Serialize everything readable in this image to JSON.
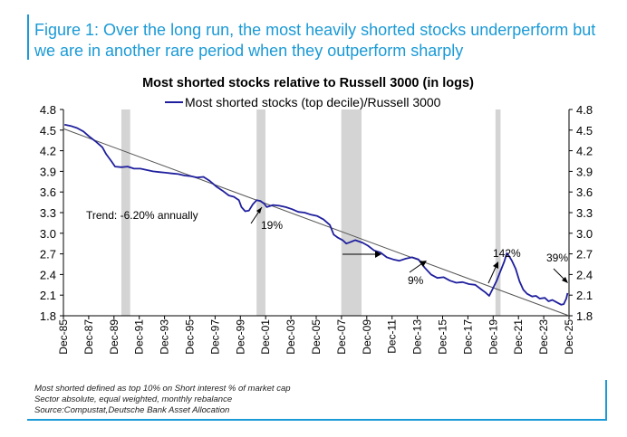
{
  "figure": {
    "title": "Figure 1: Over the long run, the most heavily shorted stocks underperform but we are in another rare period when they outperform sharply",
    "footnotes": [
      "Most shorted defined as top 10% on Short interest % of market cap",
      "Sector absolute, equal weighted, monthly rebalance",
      "Source:Compustat,Deutsche Bank Asset Allocation"
    ]
  },
  "colors": {
    "series": "#1f1f9e",
    "trend": "#555555",
    "recession": "#d4d4d4",
    "accent": "#1a9ad6"
  },
  "chart_data": {
    "type": "line",
    "title": "Most shorted stocks relative to Russell 3000 (in logs)",
    "ylim": [
      1.8,
      4.8
    ],
    "yticks": [
      "4.8",
      "4.5",
      "4.2",
      "3.9",
      "3.6",
      "3.3",
      "3.0",
      "2.7",
      "2.4",
      "2.1",
      "1.8"
    ],
    "xlim": [
      1985.917,
      2025.917
    ],
    "xticks": [
      "Dec-85",
      "Dec-87",
      "Dec-89",
      "Dec-91",
      "Dec-93",
      "Dec-95",
      "Dec-97",
      "Dec-99",
      "Dec-01",
      "Dec-03",
      "Dec-05",
      "Dec-07",
      "Dec-09",
      "Dec-11",
      "Dec-13",
      "Dec-15",
      "Dec-17",
      "Dec-19",
      "Dec-21",
      "Dec-23",
      "Dec-25"
    ],
    "legend": "top-center",
    "series": [
      {
        "name": "Most shorted stocks (top decile)/Russell 3000",
        "x": [
          1986.0,
          1986.5,
          1987.0,
          1987.5,
          1988.0,
          1988.5,
          1989.0,
          1989.3,
          1989.7,
          1990.0,
          1990.5,
          1991.0,
          1991.5,
          1992.0,
          1992.5,
          1993.0,
          1993.5,
          1994.0,
          1994.5,
          1995.0,
          1995.5,
          1996.0,
          1996.5,
          1997.0,
          1997.5,
          1998.0,
          1998.5,
          1999.0,
          1999.4,
          1999.8,
          2000.0,
          2000.3,
          2000.6,
          2000.9,
          2001.2,
          2001.5,
          2001.8,
          2002.0,
          2002.5,
          2003.0,
          2003.5,
          2004.0,
          2004.5,
          2005.0,
          2005.5,
          2006.0,
          2006.5,
          2007.0,
          2007.3,
          2007.6,
          2008.0,
          2008.3,
          2008.6,
          2009.0,
          2009.3,
          2009.6,
          2010.0,
          2010.5,
          2011.0,
          2011.5,
          2012.0,
          2012.5,
          2013.0,
          2013.5,
          2014.0,
          2014.5,
          2015.0,
          2015.5,
          2016.0,
          2016.5,
          2017.0,
          2017.5,
          2018.0,
          2018.5,
          2019.0,
          2019.3,
          2019.6,
          2019.9,
          2020.2,
          2020.5,
          2020.8,
          2021.0,
          2021.2,
          2021.4,
          2021.7,
          2022.0,
          2022.3,
          2022.6,
          2023.0,
          2023.3,
          2023.6,
          2024.0,
          2024.3,
          2024.6,
          2024.9,
          2025.1,
          2025.3,
          2025.5,
          2025.7,
          2025.8
        ],
        "values": [
          4.58,
          4.56,
          4.53,
          4.48,
          4.4,
          4.33,
          4.25,
          4.15,
          4.05,
          3.97,
          3.96,
          3.97,
          3.94,
          3.94,
          3.92,
          3.9,
          3.89,
          3.88,
          3.87,
          3.86,
          3.84,
          3.83,
          3.81,
          3.82,
          3.76,
          3.68,
          3.62,
          3.55,
          3.53,
          3.48,
          3.38,
          3.32,
          3.33,
          3.42,
          3.48,
          3.47,
          3.43,
          3.38,
          3.41,
          3.4,
          3.38,
          3.35,
          3.31,
          3.3,
          3.27,
          3.25,
          3.2,
          3.12,
          2.98,
          2.94,
          2.9,
          2.85,
          2.87,
          2.9,
          2.88,
          2.86,
          2.82,
          2.75,
          2.72,
          2.65,
          2.62,
          2.6,
          2.63,
          2.65,
          2.62,
          2.5,
          2.4,
          2.35,
          2.36,
          2.31,
          2.28,
          2.29,
          2.26,
          2.25,
          2.18,
          2.14,
          2.09,
          2.2,
          2.31,
          2.45,
          2.59,
          2.71,
          2.66,
          2.6,
          2.48,
          2.3,
          2.18,
          2.12,
          2.08,
          2.09,
          2.05,
          2.06,
          2.01,
          2.03,
          2.0,
          1.98,
          1.96,
          1.97,
          2.05,
          2.13
        ]
      }
    ],
    "trend": {
      "x": [
        1985.917,
        2025.917
      ],
      "values": [
        4.52,
        1.8
      ]
    },
    "recession_bands": [
      [
        1990.5,
        1991.2
      ],
      [
        2001.2,
        2001.9
      ],
      [
        2007.9,
        2009.5
      ],
      [
        2020.1,
        2020.5
      ]
    ],
    "annotations": {
      "trend_label": "Trend: -6.20% annually",
      "pct_2001": "19%",
      "pct_2013": "9%",
      "pct_2020": "142%",
      "pct_2025": "39%"
    }
  }
}
